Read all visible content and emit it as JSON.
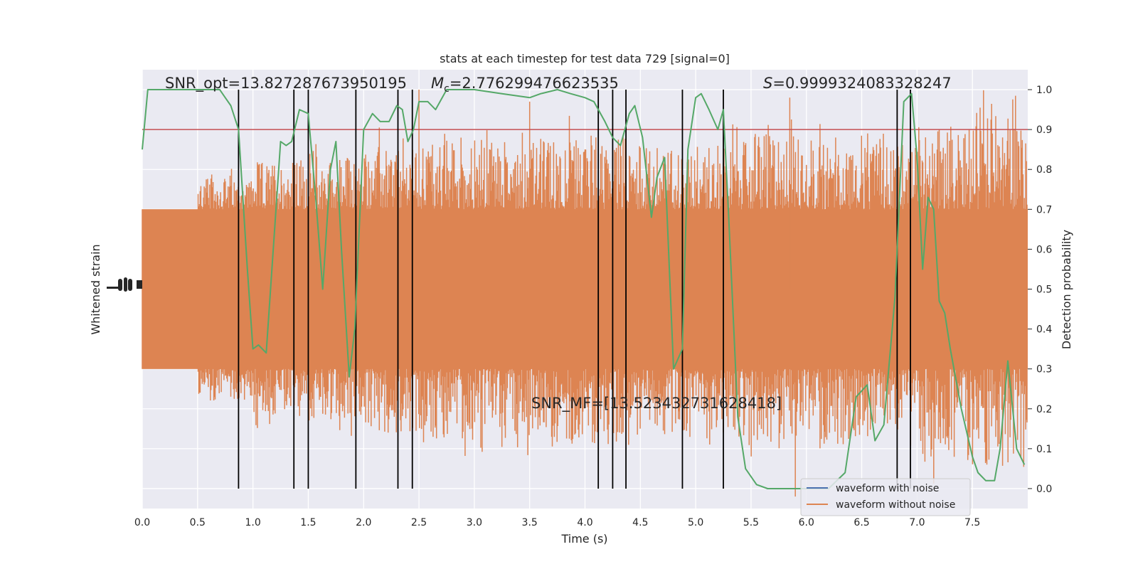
{
  "chart_data": {
    "type": "line",
    "title": "stats at each timestep for test data 729 [signal=0]",
    "xlabel": "Time (s)",
    "ylabel_left": "Whitened strain",
    "ylabel_right": "Detection probability",
    "xlim": [
      0.0,
      8.0
    ],
    "ylim_right": [
      -0.05,
      1.05
    ],
    "x_ticks": [
      "0.0",
      "0.5",
      "1.0",
      "1.5",
      "2.0",
      "2.5",
      "3.0",
      "3.5",
      "4.0",
      "4.5",
      "5.0",
      "5.5",
      "6.0",
      "6.5",
      "7.0",
      "7.5"
    ],
    "y_ticks_right": [
      "0.0",
      "0.1",
      "0.2",
      "0.3",
      "0.4",
      "0.5",
      "0.6",
      "0.7",
      "0.8",
      "0.9",
      "1.0"
    ],
    "threshold": 0.9,
    "vlines": [
      0.87,
      1.37,
      1.5,
      1.93,
      2.31,
      2.44,
      4.12,
      4.25,
      4.37,
      4.88,
      5.25,
      6.82,
      6.94
    ],
    "annotations": {
      "snr_opt": "SNR_opt=13.827287673950195",
      "mc": "=2.776299476623535",
      "mc_symbol": "M",
      "mc_sub": "c",
      "s": "=0.9999324083328247",
      "s_symbol": "S",
      "snr_mf": "SNR_MF=[13.523432731628418]"
    },
    "legend": {
      "entries": [
        "waveform with noise",
        "waveform without noise"
      ],
      "placement": "lower right"
    },
    "colors": {
      "noise": "#4c72b0",
      "strain": "#dd8452",
      "probability": "#55a868",
      "threshold": "#c44e52",
      "vline": "#000000",
      "plot_bg": "#eaeaf2",
      "grid": "#ffffff"
    },
    "series": [
      {
        "name": "waveform without noise",
        "kind": "dense-strain-noise",
        "center": 0.5,
        "core_half_width": 0.2,
        "envelope": [
          0.0,
          0.28,
          0.32,
          0.33,
          0.36,
          0.38,
          0.38,
          0.38,
          0.37,
          0.36,
          0.37,
          0.39,
          0.38,
          0.37,
          0.42,
          0.45
        ]
      },
      {
        "name": "detection probability",
        "x": [
          0.0,
          0.05,
          0.1,
          0.25,
          0.5,
          0.7,
          0.75,
          0.8,
          0.87,
          0.95,
          1.0,
          1.05,
          1.12,
          1.25,
          1.3,
          1.35,
          1.42,
          1.5,
          1.57,
          1.63,
          1.7,
          1.75,
          1.8,
          1.87,
          1.92,
          2.0,
          2.08,
          2.15,
          2.23,
          2.3,
          2.35,
          2.4,
          2.45,
          2.5,
          2.58,
          2.65,
          2.75,
          3.0,
          3.25,
          3.5,
          3.6,
          3.75,
          3.87,
          4.0,
          4.08,
          4.18,
          4.25,
          4.32,
          4.4,
          4.45,
          4.52,
          4.6,
          4.65,
          4.72,
          4.8,
          4.88,
          4.93,
          5.0,
          5.05,
          5.12,
          5.2,
          5.25,
          5.3,
          5.38,
          5.45,
          5.55,
          5.65,
          5.75,
          6.0,
          6.2,
          6.35,
          6.45,
          6.55,
          6.62,
          6.7,
          6.8,
          6.88,
          6.95,
          7.0,
          7.05,
          7.1,
          7.15,
          7.2,
          7.25,
          7.3,
          7.4,
          7.5,
          7.55,
          7.62,
          7.7,
          7.75,
          7.82,
          7.9,
          7.97
        ],
        "y": [
          0.85,
          1.0,
          1.0,
          1.0,
          1.0,
          1.0,
          0.98,
          0.96,
          0.9,
          0.55,
          0.35,
          0.36,
          0.34,
          0.87,
          0.86,
          0.87,
          0.95,
          0.94,
          0.72,
          0.5,
          0.8,
          0.87,
          0.6,
          0.28,
          0.4,
          0.9,
          0.94,
          0.92,
          0.92,
          0.96,
          0.95,
          0.87,
          0.9,
          0.97,
          0.97,
          0.95,
          1.0,
          1.0,
          0.99,
          0.98,
          0.99,
          1.0,
          0.99,
          0.98,
          0.97,
          0.92,
          0.88,
          0.86,
          0.94,
          0.96,
          0.88,
          0.68,
          0.78,
          0.83,
          0.3,
          0.35,
          0.85,
          0.98,
          0.99,
          0.95,
          0.9,
          0.95,
          0.67,
          0.18,
          0.05,
          0.01,
          0.0,
          0.0,
          0.0,
          0.0,
          0.04,
          0.23,
          0.26,
          0.12,
          0.16,
          0.48,
          0.97,
          0.99,
          0.83,
          0.55,
          0.73,
          0.7,
          0.47,
          0.44,
          0.35,
          0.2,
          0.08,
          0.04,
          0.02,
          0.02,
          0.1,
          0.32,
          0.1,
          0.06
        ]
      }
    ]
  }
}
